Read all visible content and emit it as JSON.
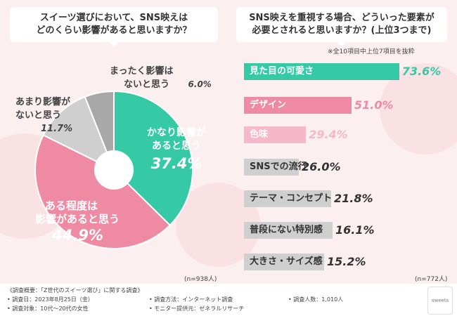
{
  "colors": {
    "teal": "#35c9a5",
    "pink": "#ef8aa4",
    "light_pink": "#f4b8c8",
    "gray": "#cfcfcf",
    "dark_gray": "#a8a8a8"
  },
  "left_panel": {
    "title_line1": "スイーツ選びにおいて、SNS映えは",
    "title_line2": "どのくらい影響があると思いますか？",
    "n_label": "(n=938人)"
  },
  "right_panel": {
    "title_line1": "SNS映えを重視する場合、どういった要素が",
    "title_line2": "必要とされると思いますか？(上位3つまで)",
    "subnote": "※全10項目中上位7項目を抜粋",
    "n_label": "(n=772人)"
  },
  "chart_data": [
    {
      "type": "pie",
      "title": "スイーツ選びにおいて、SNS映えはどのくらい影響があると思いますか？",
      "slices": [
        {
          "label_line1": "かなり影響が",
          "label_line2": "あると思う",
          "value": 37.4,
          "display": "37.4%",
          "color": "#35c9a5"
        },
        {
          "label_line1": "ある程度は",
          "label_line2": "影響があると思う",
          "value": 44.9,
          "display": "44.9%",
          "color": "#ef8aa4"
        },
        {
          "label_line1": "あまり影響が",
          "label_line2": "ないと思う",
          "value": 11.7,
          "display": "11.7%",
          "color": "#cfcfcf"
        },
        {
          "label_line1": "まったく影響は",
          "label_line2": "ないと思う",
          "value": 6.0,
          "display": "6.0%",
          "color": "#a8a8a8"
        }
      ],
      "n": "(n=938人)"
    },
    {
      "type": "bar",
      "title": "SNS映えを重視する場合、どういった要素が必要とされると思いますか？(上位3つまで)",
      "categories": [
        "見た目の可愛さ",
        "デザイン",
        "色味",
        "SNSでの流行",
        "テーマ・コンセプト",
        "普段にない特別感",
        "大きさ・サイズ感"
      ],
      "values": [
        73.6,
        51.0,
        29.4,
        26.0,
        21.8,
        16.1,
        15.2
      ],
      "display": [
        "73.6%",
        "51.0%",
        "29.4%",
        "26.0%",
        "21.8%",
        "16.1%",
        "15.2%"
      ],
      "xlim": [
        0,
        100
      ],
      "n": "(n=772人)"
    }
  ],
  "footer": {
    "summary": "《調査概要：「Z世代のスイーツ選び」に関する調査》",
    "date": "• 調査日：2023年8月25日（金）",
    "target": "• 調査対象：10代〜20代の女性",
    "method": "• 調査方法：インターネット調査",
    "provider": "• モニター提供元：ゼネラルリサーチ",
    "count": "• 調査人数：1,010人",
    "logo_text": "sweets"
  }
}
